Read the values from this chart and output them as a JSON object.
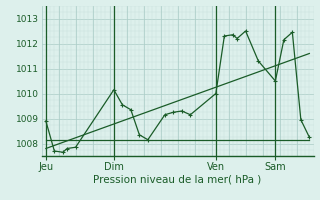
{
  "xlabel": "Pression niveau de la mer( hPa )",
  "bg_color": "#ddf0ec",
  "grid_color_major": "#aaccc6",
  "grid_color_minor": "#c8e0dc",
  "line_color": "#1a5c28",
  "ylim": [
    1007.5,
    1013.5
  ],
  "yticks": [
    1008,
    1009,
    1010,
    1011,
    1012,
    1013
  ],
  "day_labels": [
    "Jeu",
    "Dim",
    "Ven",
    "Sam"
  ],
  "day_positions": [
    0,
    16,
    40,
    54
  ],
  "xlim": [
    -1,
    63
  ],
  "line1_x": [
    0,
    2,
    4,
    5,
    7,
    16,
    18,
    20,
    22,
    24,
    28,
    30,
    32,
    34,
    40,
    42,
    44,
    45,
    47,
    50,
    54,
    56,
    58,
    60,
    62
  ],
  "line1_y": [
    1008.9,
    1007.7,
    1007.65,
    1007.8,
    1007.85,
    1010.15,
    1009.55,
    1009.35,
    1008.35,
    1008.15,
    1009.15,
    1009.25,
    1009.3,
    1009.15,
    1010.0,
    1012.3,
    1012.35,
    1012.2,
    1012.5,
    1011.3,
    1010.5,
    1012.15,
    1012.45,
    1008.95,
    1008.25
  ],
  "line2_x": [
    0,
    62
  ],
  "line2_y": [
    1008.15,
    1008.15
  ],
  "line3_x": [
    0,
    62
  ],
  "line3_y": [
    1007.8,
    1011.6
  ],
  "xlabel_fontsize": 7.5,
  "ytick_fontsize": 6.5,
  "xtick_fontsize": 7.0
}
